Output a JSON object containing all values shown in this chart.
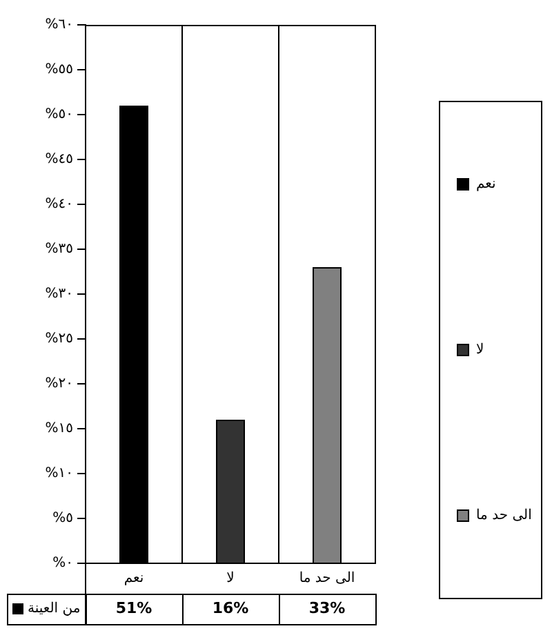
{
  "chart_data": {
    "type": "bar",
    "categories": [
      "نعم",
      "لا",
      "الى حد ما"
    ],
    "series": [
      {
        "name": "من العينة",
        "colors": [
          "#000000",
          "#333333",
          "#808080"
        ],
        "values": [
          51,
          16,
          33
        ],
        "value_labels": [
          "51%",
          "16%",
          "33%"
        ]
      }
    ],
    "ylim": [
      0,
      60
    ],
    "yticks": [
      {
        "value": 0,
        "label": "%٠"
      },
      {
        "value": 5,
        "label": "%٥"
      },
      {
        "value": 10,
        "label": "%١٠"
      },
      {
        "value": 15,
        "label": "%١٥"
      },
      {
        "value": 20,
        "label": "%٢٠"
      },
      {
        "value": 25,
        "label": "%٢٥"
      },
      {
        "value": 30,
        "label": "%٣٠"
      },
      {
        "value": 35,
        "label": "%٣٥"
      },
      {
        "value": 40,
        "label": "%٤٠"
      },
      {
        "value": 45,
        "label": "%٤٥"
      },
      {
        "value": 50,
        "label": "%٥٠"
      },
      {
        "value": 55,
        "label": "%٥٥"
      },
      {
        "value": 60,
        "label": "%٦٠"
      }
    ],
    "grid": "x",
    "legend": "bottom left"
  }
}
